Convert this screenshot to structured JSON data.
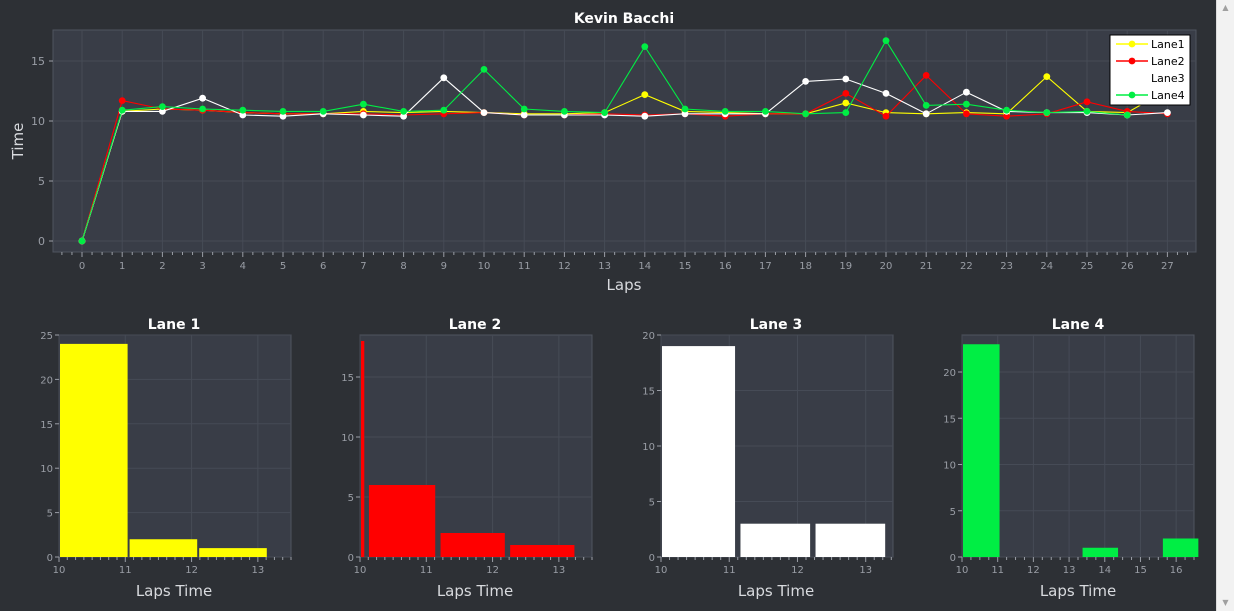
{
  "line_chart": {
    "title": "Kevin Bacchi",
    "xlabel": "Laps",
    "ylabel": "Time",
    "legend": [
      "Lane1",
      "Lane2",
      "Lane3",
      "Lane4"
    ]
  },
  "histograms": [
    {
      "title": "Lane 1",
      "xlabel": "Laps Time"
    },
    {
      "title": "Lane 2",
      "xlabel": "Laps Time"
    },
    {
      "title": "Lane 3",
      "xlabel": "Laps Time"
    },
    {
      "title": "Lane 4",
      "xlabel": "Laps Time"
    }
  ],
  "colors": {
    "background": "#2d3035",
    "plot_area": "#393d47",
    "grid": "#464b56",
    "text": "#ffffff",
    "tick": "#9a9ea6",
    "lane1": "#ffff00",
    "lane2": "#ff0000",
    "lane3": "#ffffff",
    "lane4": "#00ee44"
  },
  "chart_data": [
    {
      "type": "line",
      "title": "Kevin Bacchi",
      "xlabel": "Laps",
      "ylabel": "Time",
      "xlim": [
        0,
        27
      ],
      "ylim": [
        0,
        17.5
      ],
      "xticks": [
        0,
        1,
        2,
        3,
        4,
        5,
        6,
        7,
        8,
        9,
        10,
        11,
        12,
        13,
        14,
        15,
        16,
        17,
        18,
        19,
        20,
        21,
        22,
        23,
        24,
        25,
        26,
        27
      ],
      "yticks": [
        0,
        5,
        10,
        15
      ],
      "grid": true,
      "legend_position": "top-right",
      "series": [
        {
          "name": "Lane1",
          "color": "#ffff00",
          "x": [
            0,
            1,
            2,
            3,
            4,
            5,
            6,
            7,
            8,
            9,
            10,
            11,
            12,
            13,
            14,
            15,
            16,
            17,
            18,
            19,
            20,
            21,
            22,
            23,
            24,
            25,
            26,
            27
          ],
          "y": [
            0,
            10.8,
            11,
            10.9,
            10.7,
            10.6,
            10.6,
            10.8,
            10.7,
            10.8,
            10.7,
            10.6,
            10.6,
            10.7,
            12.2,
            10.8,
            10.7,
            10.6,
            10.6,
            11.5,
            10.7,
            10.6,
            10.7,
            10.6,
            13.7,
            10.8,
            10.7,
            12.6
          ]
        },
        {
          "name": "Lane2",
          "color": "#ff0000",
          "x": [
            0,
            1,
            2,
            3,
            4,
            5,
            6,
            7,
            8,
            9,
            10,
            11,
            12,
            13,
            14,
            15,
            16,
            17,
            18,
            19,
            20,
            21,
            22,
            23,
            24,
            25,
            26,
            27
          ],
          "y": [
            0,
            11.7,
            11,
            10.9,
            10.7,
            10.6,
            10.6,
            10.6,
            10.5,
            10.6,
            10.7,
            10.5,
            10.5,
            10.6,
            10.5,
            10.6,
            10.4,
            10.6,
            10.6,
            12.3,
            10.4,
            13.8,
            10.6,
            10.4,
            10.6,
            11.6,
            10.8,
            10.6
          ]
        },
        {
          "name": "Lane3",
          "color": "#ffffff",
          "x": [
            0,
            1,
            2,
            3,
            4,
            5,
            6,
            7,
            8,
            9,
            10,
            11,
            12,
            13,
            14,
            15,
            16,
            17,
            18,
            19,
            20,
            21,
            22,
            23,
            24,
            25,
            26,
            27
          ],
          "y": [
            0,
            10.8,
            10.8,
            11.9,
            10.5,
            10.4,
            10.6,
            10.5,
            10.4,
            13.6,
            10.7,
            10.5,
            10.5,
            10.5,
            10.4,
            10.6,
            10.6,
            10.6,
            13.3,
            13.5,
            12.3,
            10.6,
            12.4,
            10.8,
            10.7,
            10.7,
            10.5,
            10.7
          ]
        },
        {
          "name": "Lane4",
          "color": "#00ee44",
          "x": [
            0,
            1,
            2,
            3,
            4,
            5,
            6,
            7,
            8,
            9,
            10,
            11,
            12,
            13,
            14,
            15,
            16,
            17,
            18,
            19,
            20,
            21,
            22,
            23,
            24,
            25,
            26
          ],
          "y": [
            0,
            10.9,
            11.2,
            11,
            10.9,
            10.8,
            10.8,
            11.4,
            10.8,
            10.9,
            14.3,
            11,
            10.8,
            10.7,
            16.2,
            11,
            10.8,
            10.8,
            10.6,
            10.7,
            16.7,
            11.3,
            11.4,
            10.9,
            10.7,
            10.8,
            10.5
          ]
        }
      ]
    },
    {
      "type": "bar",
      "title": "Lane 1",
      "xlabel": "Laps Time",
      "xlim": [
        10,
        13.5
      ],
      "ylim": [
        0,
        25
      ],
      "xticks": [
        10,
        11,
        12,
        13
      ],
      "yticks": [
        0,
        5,
        10,
        15,
        20,
        25
      ],
      "color": "#ffff00",
      "bins": [
        [
          10,
          11.05
        ],
        [
          11.05,
          12.1
        ],
        [
          12.1,
          13.15
        ]
      ],
      "values": [
        24,
        2,
        1
      ]
    },
    {
      "type": "bar",
      "title": "Lane 2",
      "xlabel": "Laps Time",
      "xlim": [
        10,
        13.5
      ],
      "ylim": [
        0,
        18.5
      ],
      "xticks": [
        10,
        11,
        12,
        13
      ],
      "yticks": [
        0,
        5,
        10,
        15
      ],
      "color": "#ff0000",
      "bins": [
        [
          10,
          10.08
        ],
        [
          10.12,
          11.15
        ],
        [
          11.2,
          12.2
        ],
        [
          12.25,
          13.25
        ]
      ],
      "values": [
        18,
        6,
        2,
        1
      ]
    },
    {
      "type": "bar",
      "title": "Lane 3",
      "xlabel": "Laps Time",
      "xlim": [
        10,
        13.4
      ],
      "ylim": [
        0,
        20
      ],
      "xticks": [
        10,
        11,
        12,
        13
      ],
      "yticks": [
        0,
        5,
        10,
        15,
        20
      ],
      "color": "#ffffff",
      "bins": [
        [
          10,
          11.1
        ],
        [
          11.15,
          12.2
        ],
        [
          12.25,
          13.3
        ]
      ],
      "values": [
        19,
        3,
        3
      ]
    },
    {
      "type": "bar",
      "title": "Lane 4",
      "xlabel": "Laps Time",
      "xlim": [
        10,
        16.5
      ],
      "ylim": [
        0,
        24
      ],
      "xticks": [
        10,
        11,
        12,
        13,
        14,
        15,
        16
      ],
      "yticks": [
        0,
        5,
        10,
        15,
        20
      ],
      "color": "#00ee44",
      "bins": [
        [
          10,
          11.08
        ],
        [
          13.35,
          14.4
        ],
        [
          15.6,
          16.65
        ]
      ],
      "values": [
        23,
        1,
        2
      ]
    }
  ]
}
